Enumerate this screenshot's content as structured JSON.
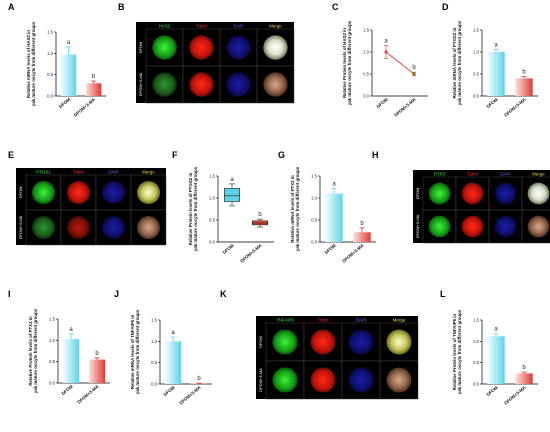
{
  "labels": {
    "panels": [
      "A",
      "B",
      "C",
      "D",
      "E",
      "F",
      "G",
      "H",
      "I",
      "J",
      "K",
      "L"
    ],
    "groups": [
      "DFOM",
      "DFOM+3-MA"
    ],
    "stains": {
      "B": [
        "HAS2",
        "Tubin",
        "DAPI",
        "Merge"
      ],
      "E": [
        "PTGS2",
        "Tubin",
        "DAPI",
        "Merge"
      ],
      "H": [
        "PTX3",
        "Tubin",
        "DAPI",
        "Merge"
      ],
      "K": [
        "TNFAIP6",
        "Tubin",
        "DAPI",
        "Merge"
      ]
    },
    "ylabels": {
      "A": [
        "Relative mRNA levels of HAS2 in",
        "yak mature oocyte from different groups"
      ],
      "C": [
        "Relative Protein levels of HAS2 in",
        "yak mature oocyte from different groups"
      ],
      "D": [
        "Relative mRNA levels of PTGS2 in",
        "yak mature oocyte from different groups"
      ],
      "F": [
        "Relative Protein levels of PTGS2 in",
        "yak mature oocyte from different groups"
      ],
      "G": [
        "Relative mRNA levels of PTX3 in",
        "yak mature oocyte from different groups"
      ],
      "I": [
        "Relative Protein levels of PTX3 in",
        "yak mature oocyte from different groups"
      ],
      "J": [
        "Relative mRNA levels of TNFAIP6 in",
        "yak mature oocyte from different groups"
      ],
      "L": [
        "Relative Protein levels of TNFAIP6 in",
        "yak mature oocyte from different groups"
      ]
    },
    "sig": [
      "a",
      "b"
    ]
  },
  "chart_data": [
    {
      "panel": "A",
      "type": "bar",
      "categories": [
        "DFOM",
        "DFOM+3-MA"
      ],
      "values": [
        0.97,
        0.3
      ],
      "errors": [
        0.18,
        0.05
      ],
      "ylim": [
        0,
        1.5
      ],
      "yticks": [
        "0.0",
        "0.5",
        "1.0",
        "1.5"
      ],
      "letters": [
        "a",
        "b"
      ]
    },
    {
      "panel": "C",
      "type": "line",
      "categories": [
        "DFOM",
        "DFOM+3-MA"
      ],
      "values": [
        1.0,
        0.5
      ],
      "errors": [
        0.15,
        0.04
      ],
      "ylim": [
        0,
        1.5
      ],
      "yticks": [
        "0.0",
        "0.5",
        "1.0",
        "1.5"
      ],
      "letters": [
        "a",
        "b"
      ]
    },
    {
      "panel": "D",
      "type": "bar",
      "categories": [
        "DFOM",
        "DFOM+3-MA"
      ],
      "values": [
        1.0,
        0.4
      ],
      "errors": [
        0.06,
        0.04
      ],
      "ylim": [
        0,
        1.5
      ],
      "yticks": [
        "0.0",
        "0.5",
        "1.0",
        "1.5"
      ],
      "letters": [
        "a",
        "b"
      ]
    },
    {
      "panel": "F",
      "type": "box",
      "categories": [
        "DFOM",
        "DFOM+3-MA"
      ],
      "boxes": [
        {
          "min": 0.82,
          "q1": 0.92,
          "median": 1.05,
          "q3": 1.22,
          "max": 1.32
        },
        {
          "min": 0.34,
          "q1": 0.39,
          "median": 0.43,
          "q3": 0.48,
          "max": 0.52
        }
      ],
      "ylim": [
        0,
        1.5
      ],
      "yticks": [
        "0.0",
        "0.5",
        "1.0",
        "1.5"
      ],
      "letters": [
        "a",
        "b"
      ]
    },
    {
      "panel": "G",
      "type": "bar",
      "categories": [
        "DFOM",
        "DFOM+3-MA"
      ],
      "values": [
        1.1,
        0.22
      ],
      "errors": [
        0.12,
        0.1
      ],
      "ylim": [
        0,
        1.5
      ],
      "yticks": [
        "0.0",
        "0.5",
        "1.0",
        "1.5"
      ],
      "letters": [
        "a",
        "b"
      ]
    },
    {
      "panel": "I",
      "type": "bar",
      "categories": [
        "DFOM",
        "DFOM+3-MA"
      ],
      "values": [
        1.03,
        0.55
      ],
      "errors": [
        0.12,
        0.04
      ],
      "ylim": [
        0,
        1.5
      ],
      "yticks": [
        "0.0",
        "0.5",
        "1.0",
        "1.5"
      ],
      "letters": [
        "a",
        "b"
      ]
    },
    {
      "panel": "J",
      "type": "bar",
      "categories": [
        "DFOM",
        "DFOM+3-MA"
      ],
      "values": [
        1.0,
        0.01
      ],
      "errors": [
        0.1,
        0.01
      ],
      "ylim": [
        0,
        1.5
      ],
      "yticks": [
        "0.0",
        "0.5",
        "1.0",
        "1.5"
      ],
      "letters": [
        "a",
        "b"
      ]
    },
    {
      "panel": "L",
      "type": "bar",
      "categories": [
        "DFOM",
        "DFOM+3-MA"
      ],
      "values": [
        1.12,
        0.25
      ],
      "errors": [
        0.06,
        0.03
      ],
      "ylim": [
        0,
        1.5
      ],
      "yticks": [
        "0.0",
        "0.5",
        "1.0",
        "1.5"
      ],
      "letters": [
        "a",
        "b"
      ]
    }
  ]
}
